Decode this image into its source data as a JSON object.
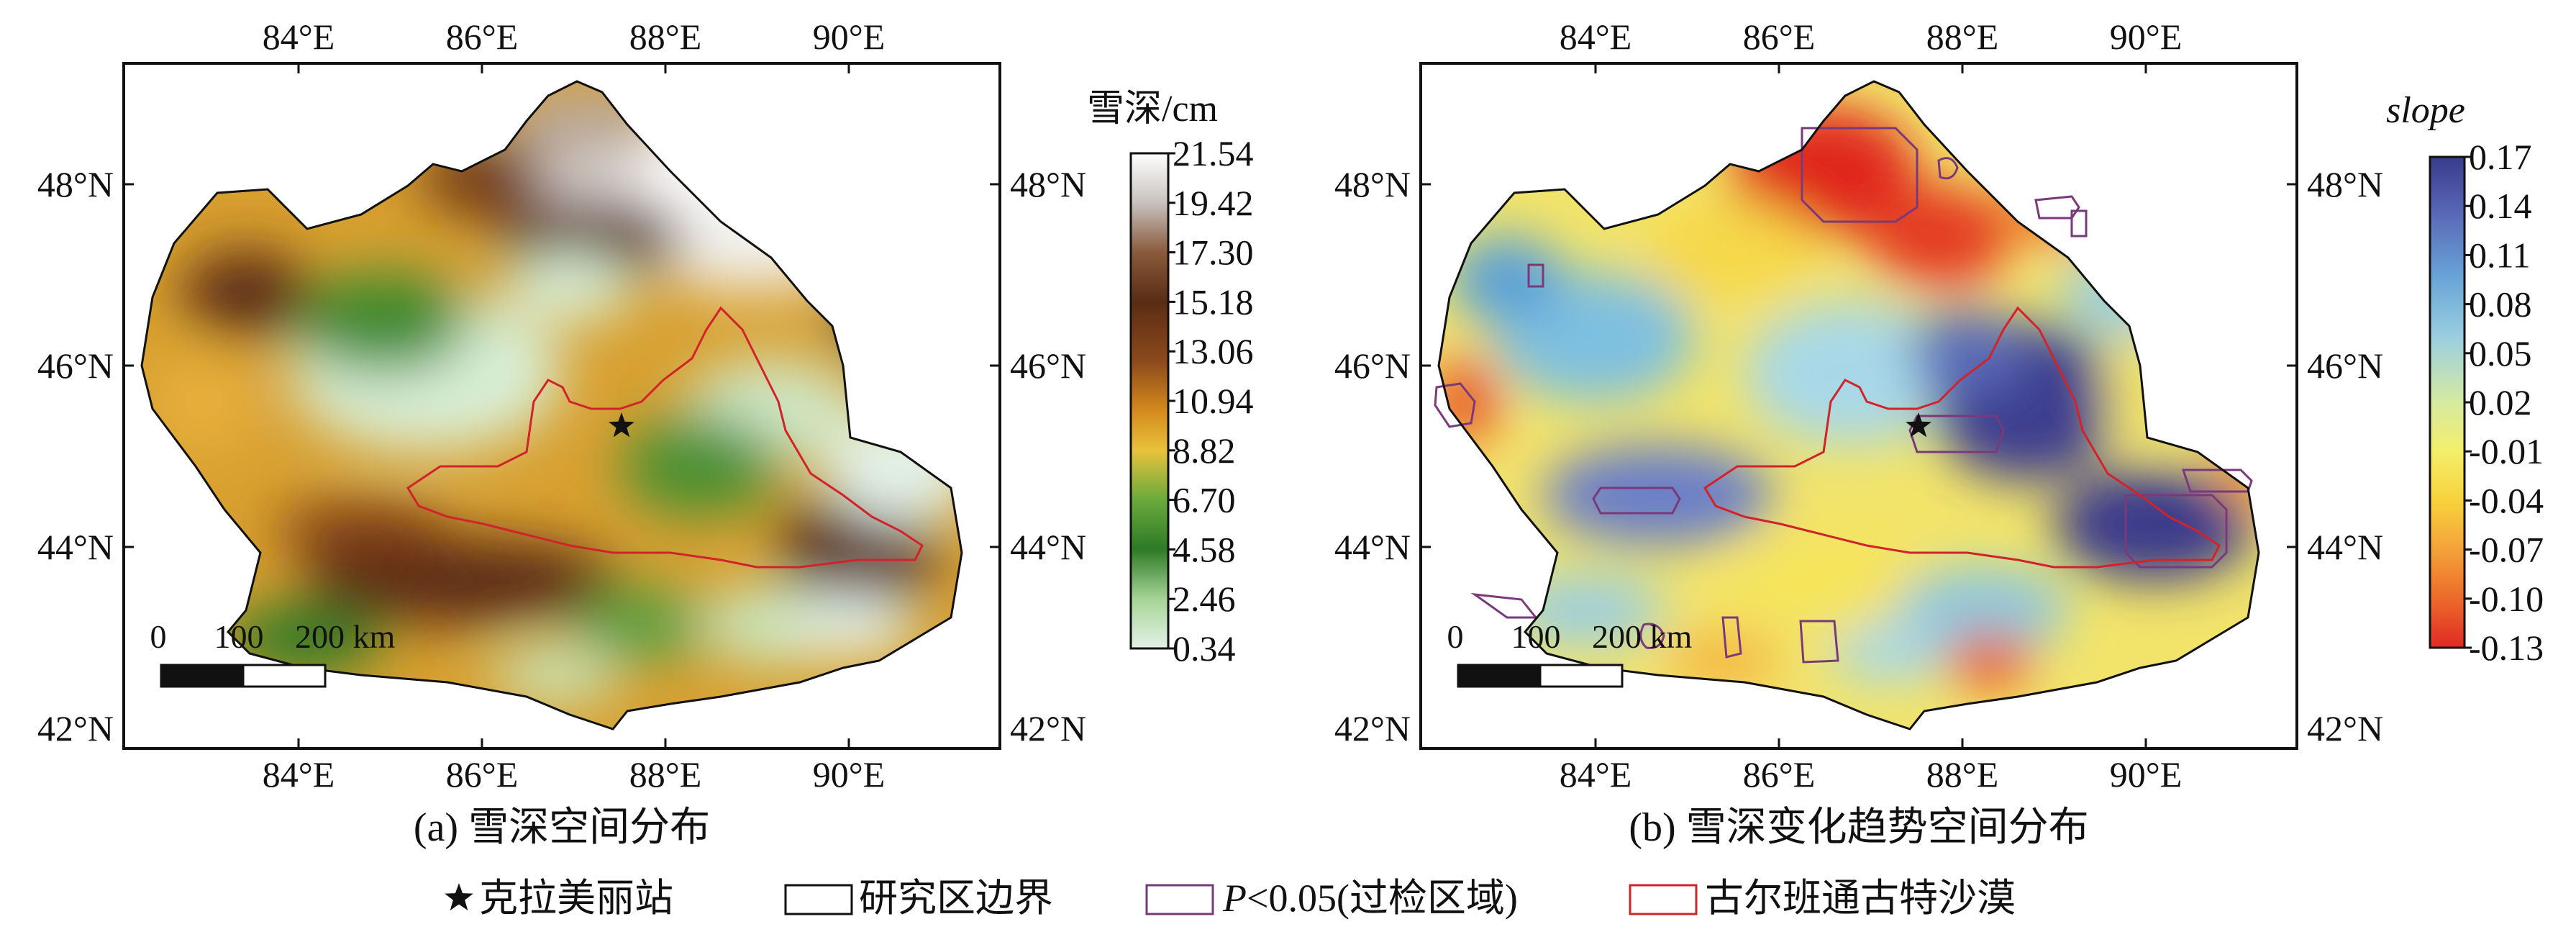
{
  "panels": [
    {
      "caption": "(a) 雪深空间分布",
      "lon_ticks": [
        "84°E",
        "86°E",
        "88°E",
        "90°E"
      ],
      "lat_ticks": [
        "48°N",
        "46°N",
        "44°N",
        "42°N"
      ],
      "scalebar_labels": [
        "0",
        "100",
        "200 km"
      ],
      "colorbar": {
        "title": "雪深/cm",
        "ticks": [
          "21.54",
          "19.42",
          "17.30",
          "15.18",
          "13.06",
          "10.94",
          "8.82",
          "6.70",
          "4.58",
          "2.46",
          "0.34"
        ],
        "colors": [
          "#ffffff",
          "#c7c2be",
          "#8a5a3c",
          "#5a2c14",
          "#8c4a1c",
          "#d58a1c",
          "#e8c23c",
          "#6aaa3c",
          "#2e7a26",
          "#a6d496",
          "#e3f2e8"
        ]
      }
    },
    {
      "caption": "(b) 雪深变化趋势空间分布",
      "lon_ticks": [
        "84°E",
        "86°E",
        "88°E",
        "90°E"
      ],
      "lat_ticks": [
        "48°N",
        "46°N",
        "44°N",
        "42°N"
      ],
      "scalebar_labels": [
        "0",
        "100",
        "200 km"
      ],
      "colorbar": {
        "title": "slope",
        "ticks": [
          "0.17",
          "0.14",
          "0.11",
          "0.08",
          "0.05",
          "0.02",
          "-0.01",
          "-0.04",
          "-0.07",
          "-0.10",
          "-0.13"
        ],
        "colors": [
          "#3a3a8c",
          "#5a6ab8",
          "#6aa6d8",
          "#9ccfe0",
          "#d6eaa0",
          "#f4ee6a",
          "#f8d23c",
          "#f4a23a",
          "#ec6a2a",
          "#e02a24"
        ]
      }
    }
  ],
  "legend": [
    {
      "symbol": "star",
      "label": "克拉美丽站"
    },
    {
      "symbol": "box-black",
      "label": "研究区边界"
    },
    {
      "symbol": "box-purple",
      "label_italic": "P",
      "label": "<0.05(过检区域)"
    },
    {
      "symbol": "box-red",
      "label": "古尔班通古特沙漠"
    }
  ]
}
